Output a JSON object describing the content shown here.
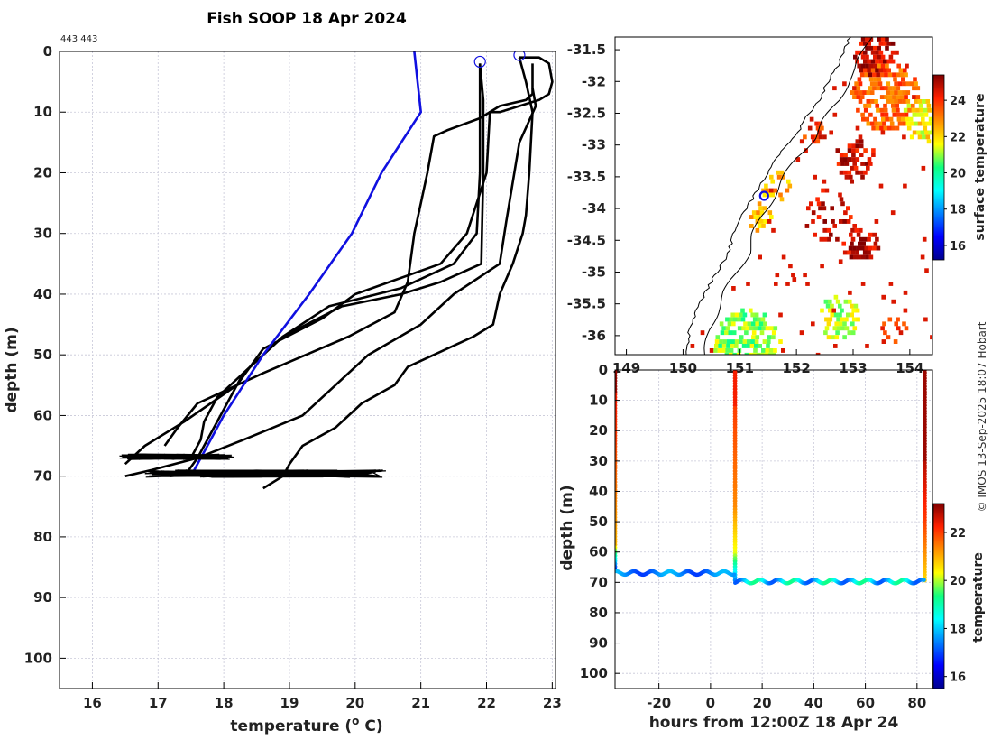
{
  "title": "Fish SOOP 18 Apr 2024",
  "profile_ids": "443 443",
  "credit": "© IMOS 13-Sep-2025 18:07 Hobart",
  "colors": {
    "blue": "#1010e0",
    "black": "#000000",
    "grid": "#c8c8d8"
  },
  "chart_data": [
    {
      "type": "line",
      "name": "profiles",
      "title": "Fish SOOP 18 Apr 2024",
      "xlabel": "temperature (",
      "xlabel_sup": "o",
      "xlabel_tail": " C)",
      "ylabel": "depth (m)",
      "xlim": [
        15.5,
        23.05
      ],
      "ylim": [
        105,
        0
      ],
      "xticks": [
        "16",
        "17",
        "18",
        "19",
        "20",
        "21",
        "22",
        "23"
      ],
      "yticks": [
        "0",
        "10",
        "20",
        "30",
        "40",
        "50",
        "60",
        "70",
        "80",
        "90",
        "100"
      ],
      "climatology": [
        [
          20.9,
          0
        ],
        [
          20.95,
          5
        ],
        [
          21.0,
          10
        ],
        [
          20.4,
          20
        ],
        [
          19.95,
          30
        ],
        [
          19.3,
          40
        ],
        [
          18.6,
          50
        ],
        [
          18.0,
          60
        ],
        [
          17.7,
          66
        ],
        [
          17.5,
          70
        ]
      ],
      "series": [
        {
          "name": "cast-1",
          "points": [
            [
              21.9,
              2
            ],
            [
              21.95,
              8
            ],
            [
              21.95,
              20
            ],
            [
              21.93,
              30
            ],
            [
              21.92,
              35
            ],
            [
              21.3,
              38
            ],
            [
              20.7,
              40
            ],
            [
              19.8,
              42
            ],
            [
              18.9,
              47
            ],
            [
              18.6,
              50
            ],
            [
              18.2,
              54
            ],
            [
              17.9,
              57
            ],
            [
              17.7,
              61
            ],
            [
              17.65,
              64
            ],
            [
              17.5,
              67
            ]
          ]
        },
        {
          "name": "cast-2",
          "points": [
            [
              22.7,
              2
            ],
            [
              22.7,
              5
            ],
            [
              22.7,
              7
            ],
            [
              22.6,
              8
            ],
            [
              22.2,
              9
            ],
            [
              21.9,
              11
            ],
            [
              21.9,
              20
            ],
            [
              21.85,
              30
            ],
            [
              21.5,
              35
            ],
            [
              20.7,
              39
            ],
            [
              19.6,
              42
            ],
            [
              18.9,
              47
            ],
            [
              18.3,
              53
            ],
            [
              17.9,
              61
            ],
            [
              17.6,
              67
            ],
            [
              17.4,
              70
            ]
          ]
        },
        {
          "name": "cast-3",
          "points": [
            [
              22.5,
              1
            ],
            [
              22.8,
              1
            ],
            [
              22.95,
              2
            ],
            [
              23.0,
              5
            ],
            [
              22.95,
              7
            ],
            [
              22.8,
              8
            ],
            [
              22.2,
              10
            ],
            [
              22.05,
              10
            ],
            [
              22.0,
              20
            ],
            [
              21.7,
              30
            ],
            [
              21.3,
              35
            ],
            [
              20.0,
              40
            ],
            [
              19.5,
              44
            ],
            [
              18.6,
              49
            ],
            [
              18.2,
              55
            ],
            [
              17.4,
              61
            ],
            [
              16.8,
              65
            ],
            [
              16.5,
              68
            ]
          ]
        },
        {
          "name": "cast-4",
          "points": [
            [
              21.9,
              2
            ],
            [
              21.9,
              10
            ],
            [
              21.9,
              11
            ],
            [
              21.4,
              13
            ],
            [
              21.2,
              14
            ],
            [
              21.1,
              20
            ],
            [
              21.0,
              25
            ],
            [
              20.9,
              30
            ],
            [
              20.8,
              38
            ],
            [
              20.6,
              43
            ],
            [
              19.9,
              47
            ],
            [
              18.6,
              53
            ],
            [
              17.6,
              58
            ],
            [
              17.3,
              62
            ],
            [
              17.1,
              65
            ]
          ]
        },
        {
          "name": "cast-5",
          "points": [
            [
              22.5,
              1
            ],
            [
              22.6,
              5
            ],
            [
              22.7,
              10
            ],
            [
              22.65,
              20
            ],
            [
              22.6,
              27
            ],
            [
              22.55,
              30
            ],
            [
              22.4,
              35
            ],
            [
              22.2,
              40
            ],
            [
              22.1,
              45
            ],
            [
              21.8,
              47
            ],
            [
              20.8,
              52
            ],
            [
              20.6,
              55
            ],
            [
              20.1,
              58
            ],
            [
              19.7,
              62
            ],
            [
              19.2,
              65
            ],
            [
              19.0,
              68
            ],
            [
              18.9,
              70
            ],
            [
              18.6,
              72
            ]
          ]
        },
        {
          "name": "cast-6",
          "points": [
            [
              22.7,
              6
            ],
            [
              22.75,
              9
            ],
            [
              22.5,
              15
            ],
            [
              22.3,
              28
            ],
            [
              22.2,
              35
            ],
            [
              21.5,
              40
            ],
            [
              21.0,
              45
            ],
            [
              20.2,
              50
            ],
            [
              19.7,
              55
            ],
            [
              19.2,
              60
            ],
            [
              18.3,
              64
            ],
            [
              17.6,
              67
            ],
            [
              16.9,
              69
            ],
            [
              16.5,
              70
            ]
          ]
        }
      ]
    },
    {
      "type": "heatmap",
      "name": "map",
      "yticks": [
        "-31.5",
        "-32",
        "-32.5",
        "-33",
        "-33.5",
        "-34",
        "-34.5",
        "-35",
        "-35.5",
        "-36"
      ],
      "xticks": [
        "149",
        "150",
        "151",
        "152",
        "153",
        "154"
      ],
      "xlim": [
        148.8,
        154.4
      ],
      "ylim": [
        -36.3,
        -31.3
      ],
      "colorbar_label": "surface temperature",
      "colorbar_ticks": [
        "16",
        "18",
        "20",
        "22",
        "24"
      ],
      "colorbar_range": [
        15.2,
        25.4
      ],
      "location": [
        151.43,
        -33.8
      ]
    },
    {
      "type": "scatter",
      "name": "section",
      "xlabel": "hours from 12:00Z 18 Apr 24",
      "ylabel": "depth (m)",
      "xlim": [
        -37,
        86
      ],
      "ylim": [
        105,
        0
      ],
      "xticks": [
        "-20",
        "0",
        "20",
        "40",
        "60",
        "80"
      ],
      "yticks": [
        "0",
        "10",
        "20",
        "30",
        "40",
        "50",
        "60",
        "70",
        "80",
        "90",
        "100"
      ],
      "colorbar_label": "temperature",
      "colorbar_ticks": [
        "16",
        "18",
        "20",
        "22"
      ],
      "colorbar_range": [
        15.5,
        23.2
      ],
      "casts": [
        -37,
        9.5,
        83
      ]
    }
  ]
}
